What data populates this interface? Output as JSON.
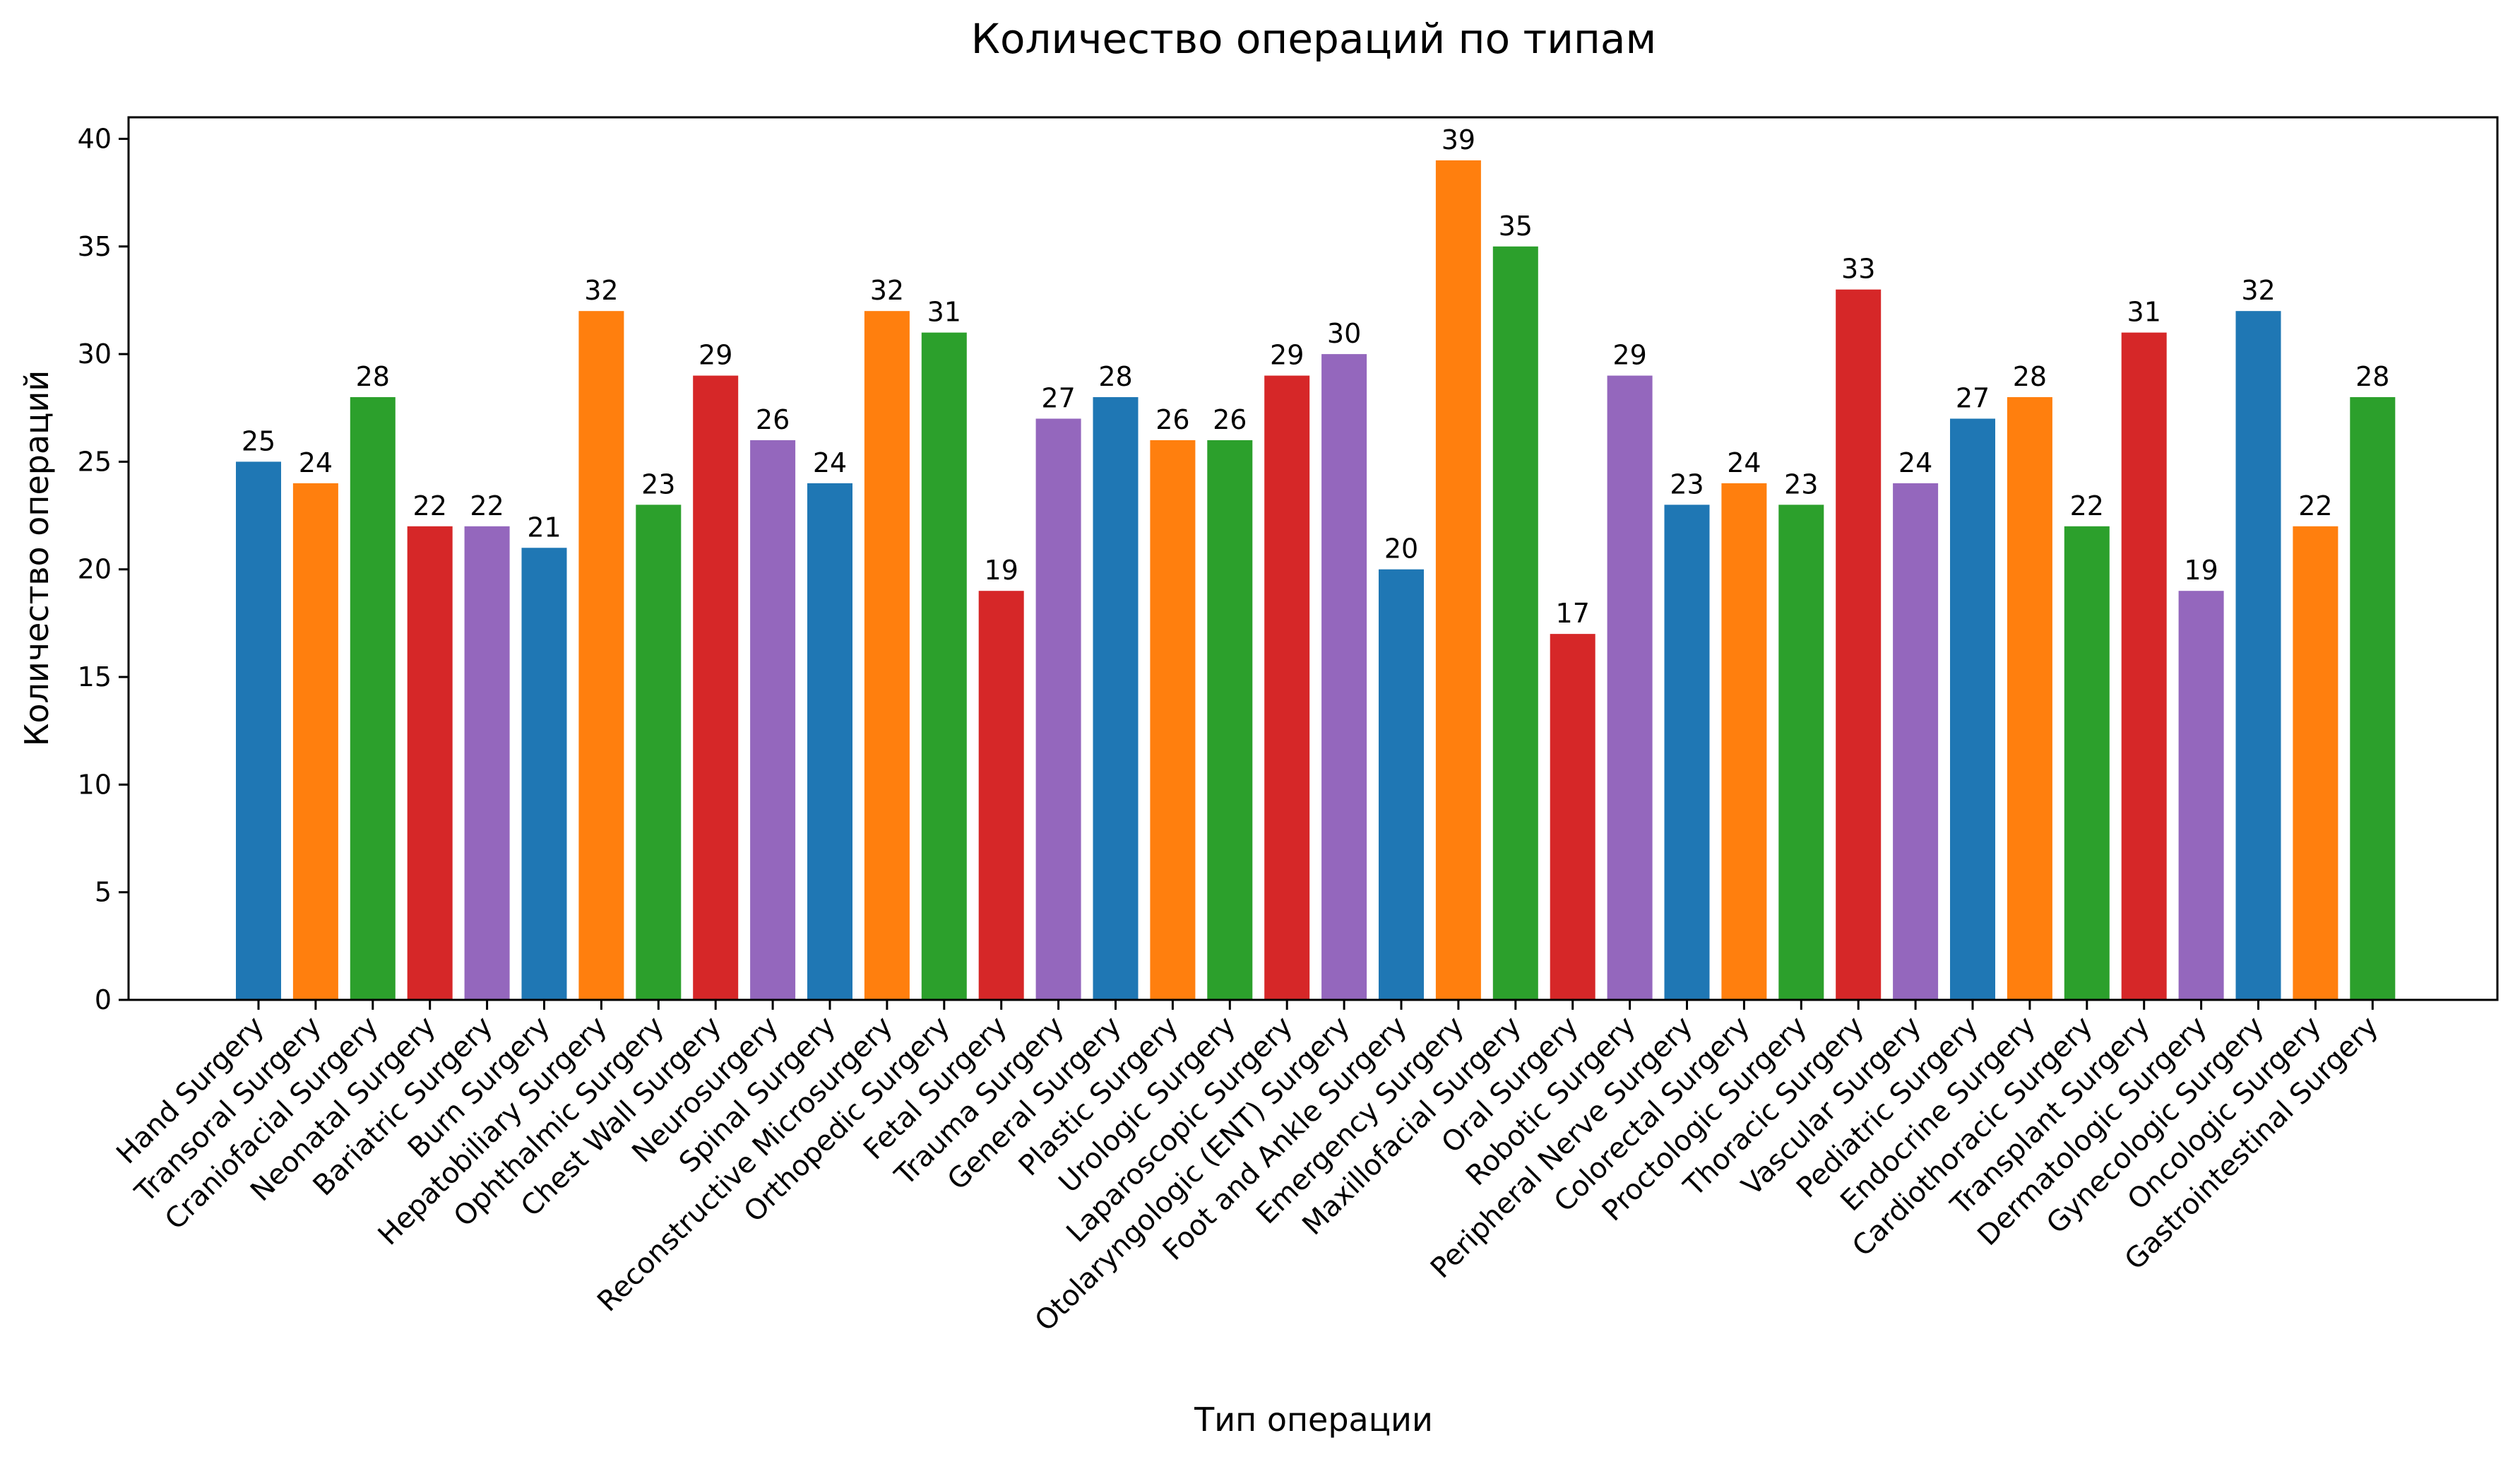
{
  "chart_data": {
    "type": "bar",
    "title": "Количество операций по типам",
    "xlabel": "Тип операции",
    "ylabel": "Количество операций",
    "ylim": [
      0,
      41
    ],
    "yticks": [
      0,
      5,
      10,
      15,
      20,
      25,
      30,
      35,
      40
    ],
    "grid": false,
    "categories": [
      "Hand Surgery",
      "Transoral Surgery",
      "Craniofacial Surgery",
      "Neonatal Surgery",
      "Bariatric Surgery",
      "Burn Surgery",
      "Hepatobiliary Surgery",
      "Ophthalmic Surgery",
      "Chest Wall Surgery",
      "Neurosurgery",
      "Spinal Surgery",
      "Reconstructive Microsurgery",
      "Orthopedic Surgery",
      "Fetal Surgery",
      "Trauma Surgery",
      "General Surgery",
      "Plastic Surgery",
      "Urologic Surgery",
      "Laparoscopic Surgery",
      "Otolaryngologic (ENT) Surgery",
      "Foot and Ankle Surgery",
      "Emergency Surgery",
      "Maxillofacial Surgery",
      "Oral Surgery",
      "Robotic Surgery",
      "Peripheral Nerve Surgery",
      "Colorectal Surgery",
      "Proctologic Surgery",
      "Thoracic Surgery",
      "Vascular Surgery",
      "Pediatric Surgery",
      "Endocrine Surgery",
      "Cardiothoracic Surgery",
      "Transplant Surgery",
      "Dermatologic Surgery",
      "Gynecologic Surgery",
      "Oncologic Surgery",
      "Gastrointestinal Surgery"
    ],
    "values": [
      25,
      24,
      28,
      22,
      22,
      21,
      32,
      23,
      29,
      26,
      24,
      32,
      31,
      19,
      27,
      28,
      26,
      26,
      29,
      30,
      20,
      39,
      35,
      17,
      29,
      23,
      24,
      23,
      33,
      24,
      27,
      28,
      22,
      31,
      19,
      32,
      22,
      28
    ],
    "colors": [
      "#1f77b4",
      "#ff7f0e",
      "#2ca02c",
      "#d62728",
      "#9467bd"
    ]
  }
}
